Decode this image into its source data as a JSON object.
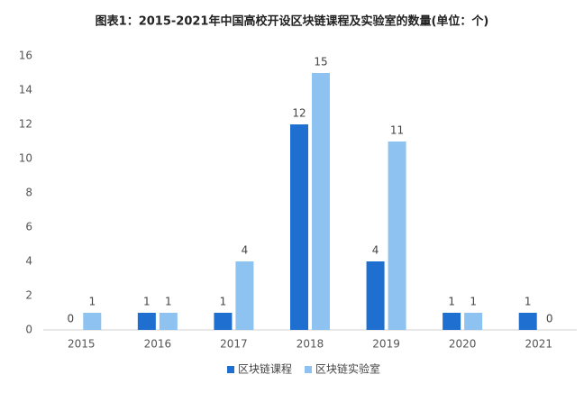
{
  "chart_data": {
    "type": "bar",
    "title": "图表1：2015-2021年中国高校开设区块链课程及实验室的数量(单位：个)",
    "categories": [
      "2015",
      "2016",
      "2017",
      "2018",
      "2019",
      "2020",
      "2021"
    ],
    "series": [
      {
        "name": "区块链课程",
        "color": "#1f6fd1",
        "values": [
          0,
          1,
          1,
          12,
          4,
          1,
          1
        ]
      },
      {
        "name": "区块链实验室",
        "color": "#8ec2f0",
        "values": [
          1,
          1,
          4,
          15,
          11,
          1,
          0
        ]
      }
    ],
    "ylim": [
      0,
      16
    ],
    "yticks": [
      0,
      2,
      4,
      6,
      8,
      10,
      12,
      14,
      16
    ],
    "legend": "bottom"
  }
}
